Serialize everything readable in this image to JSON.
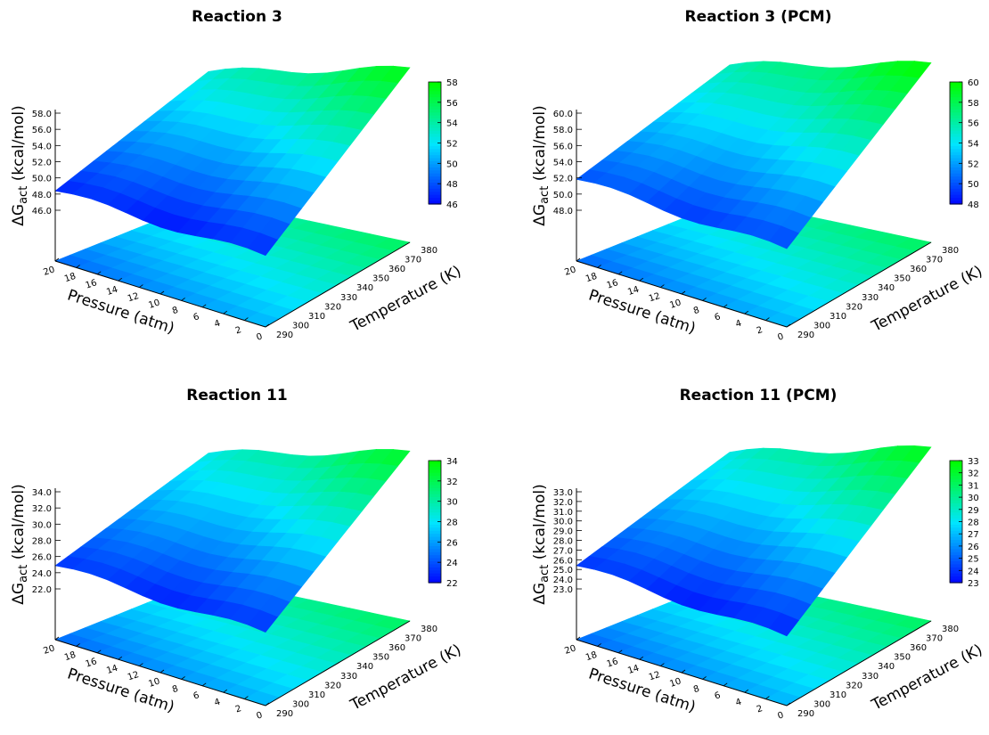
{
  "chart_data": [
    {
      "type": "surface",
      "title": "Reaction 3",
      "zlabel": "ΔG",
      "zlabel_sub": "act",
      "zlabel_unit": " (kcal/mol)",
      "xlabel": "Pressure (atm)",
      "ylabel": "Temperature (K)",
      "pressure_ticks": [
        "20",
        "18",
        "16",
        "14",
        "12",
        "10",
        "8",
        "6",
        "4",
        "2",
        "0"
      ],
      "temperature_ticks": [
        "290",
        "300",
        "310",
        "320",
        "330",
        "340",
        "350",
        "360",
        "370",
        "380"
      ],
      "z_ticks": [
        "46.0",
        "48.0",
        "50.0",
        "52.0",
        "54.0",
        "56.0",
        "58.0"
      ],
      "cb_ticks": [
        "46",
        "48",
        "50",
        "52",
        "54",
        "56",
        "58"
      ],
      "zlim": [
        46,
        58
      ],
      "corners": {
        "p20_t290": 46.8,
        "p0_t290": 46.8,
        "p20_t380": 52.8,
        "p0_t380": 57.5
      },
      "peak": 58
    },
    {
      "type": "surface",
      "title": "Reaction 3 (PCM)",
      "zlabel": "ΔG",
      "zlabel_sub": "act",
      "zlabel_unit": " (kcal/mol)",
      "xlabel": "Pressure (atm)",
      "ylabel": "Temperature (K)",
      "pressure_ticks": [
        "20",
        "18",
        "16",
        "14",
        "12",
        "10",
        "8",
        "6",
        "4",
        "2",
        "0"
      ],
      "temperature_ticks": [
        "290",
        "300",
        "310",
        "320",
        "330",
        "340",
        "350",
        "360",
        "370",
        "380"
      ],
      "z_ticks": [
        "48.0",
        "50.0",
        "52.0",
        "54.0",
        "56.0",
        "58.0",
        "60.0"
      ],
      "cb_ticks": [
        "48",
        "50",
        "52",
        "54",
        "56",
        "58",
        "60"
      ],
      "zlim": [
        48,
        60
      ],
      "corners": {
        "p20_t290": 50.0,
        "p0_t290": 49.5,
        "p20_t380": 55.5,
        "p0_t380": 60.0
      },
      "peak": 60
    },
    {
      "type": "surface",
      "title": "Reaction 11",
      "zlabel": "ΔG",
      "zlabel_sub": "act",
      "zlabel_unit": " (kcal/mol)",
      "xlabel": "Pressure (atm)",
      "ylabel": "Temperature (K)",
      "pressure_ticks": [
        "20",
        "18",
        "16",
        "14",
        "12",
        "10",
        "8",
        "6",
        "4",
        "2",
        "0"
      ],
      "temperature_ticks": [
        "290",
        "300",
        "310",
        "320",
        "330",
        "340",
        "350",
        "360",
        "370",
        "380"
      ],
      "z_ticks": [
        "22.0",
        "24.0",
        "26.0",
        "28.0",
        "30.0",
        "32.0",
        "34.0"
      ],
      "cb_ticks": [
        "22",
        "24",
        "26",
        "28",
        "30",
        "32",
        "34"
      ],
      "zlim": [
        22,
        34
      ],
      "corners": {
        "p20_t290": 23.2,
        "p0_t290": 23.0,
        "p20_t380": 28.5,
        "p0_t380": 33.0
      },
      "peak": 34
    },
    {
      "type": "surface",
      "title": "Reaction 11 (PCM)",
      "zlabel": "ΔG",
      "zlabel_sub": "act",
      "zlabel_unit": " (kcal/mol)",
      "xlabel": "Pressure (atm)",
      "ylabel": "Temperature (K)",
      "pressure_ticks": [
        "20",
        "18",
        "16",
        "14",
        "12",
        "10",
        "8",
        "6",
        "4",
        "2",
        "0"
      ],
      "temperature_ticks": [
        "290",
        "300",
        "310",
        "320",
        "330",
        "340",
        "350",
        "360",
        "370",
        "380"
      ],
      "z_ticks": [
        "23.0",
        "24.0",
        "25.0",
        "26.0",
        "27.0",
        "28.0",
        "29.0",
        "30.0",
        "31.0",
        "32.0",
        "33.0"
      ],
      "cb_ticks": [
        "23",
        "24",
        "25",
        "26",
        "27",
        "28",
        "29",
        "30",
        "31",
        "32",
        "33"
      ],
      "zlim": [
        23,
        33
      ],
      "corners": {
        "p20_t290": 24.0,
        "p0_t290": 23.5,
        "p20_t380": 28.5,
        "p0_t380": 32.5
      },
      "peak": 33
    }
  ],
  "colors": {
    "low": "#0000ff",
    "mid": "#00e5ff",
    "high": "#00ff00",
    "axis": "#000000"
  }
}
